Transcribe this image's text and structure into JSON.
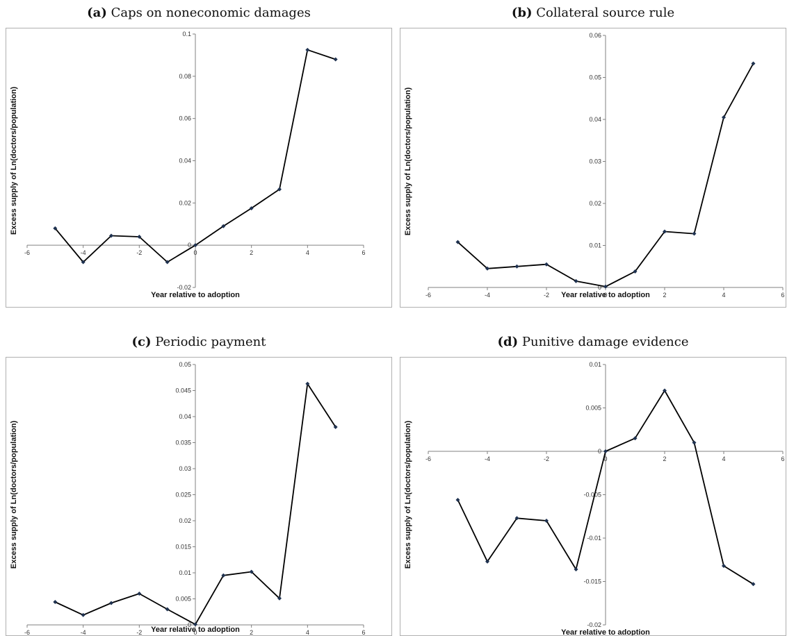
{
  "chart_data": [
    {
      "type": "line",
      "tag": "(a)",
      "title": "Caps on noneconomic damages",
      "xlabel": "Year relative to adoption",
      "ylabel": "Excess supply of Ln(doctors/population)",
      "xlim": [
        -6,
        6
      ],
      "xticks": [
        -6,
        -4,
        -2,
        0,
        2,
        4,
        6
      ],
      "ylim": [
        -0.02,
        0.1
      ],
      "yticks": [
        -0.02,
        0,
        0.02,
        0.04,
        0.06,
        0.08,
        0.1
      ],
      "ytick_labels": [
        "-0.02",
        "0",
        "0.02",
        "0.04",
        "0.06",
        "0.08",
        "0.1"
      ],
      "x": [
        -5,
        -4,
        -3,
        -2,
        -1,
        0,
        1,
        2,
        3,
        4,
        5
      ],
      "y": [
        0.008,
        -0.008,
        0.0045,
        0.004,
        -0.008,
        0,
        0.009,
        0.0175,
        0.0265,
        0.0925,
        0.088
      ],
      "grid": false
    },
    {
      "type": "line",
      "tag": "(b)",
      "title": "Collateral source rule",
      "xlabel": "Year relative to adoption",
      "ylabel": "Excess supply of Ln(doctors/population)",
      "xlim": [
        -6,
        6
      ],
      "xticks": [
        -6,
        -4,
        -2,
        0,
        2,
        4,
        6
      ],
      "ylim": [
        0,
        0.06
      ],
      "yticks": [
        0,
        0.01,
        0.02,
        0.03,
        0.04,
        0.05,
        0.06
      ],
      "ytick_labels": [
        "0",
        "0.01",
        "0.02",
        "0.03",
        "0.04",
        "0.05",
        "0.06"
      ],
      "x": [
        -5,
        -4,
        -3,
        -2,
        -1,
        0,
        1,
        2,
        3,
        4,
        5
      ],
      "y": [
        0.0108,
        0.0045,
        0.005,
        0.0055,
        0.0015,
        0.0002,
        0.0038,
        0.0133,
        0.0128,
        0.0405,
        0.0533
      ],
      "grid": false
    },
    {
      "type": "line",
      "tag": "(c)",
      "title": "Periodic payment",
      "xlabel": "Year relative to adoption",
      "ylabel": "Excess supply of Ln(doctors/population)",
      "xlim": [
        -6,
        6
      ],
      "xticks": [
        -6,
        -4,
        -2,
        0,
        2,
        4,
        6
      ],
      "ylim": [
        0,
        0.05
      ],
      "yticks": [
        0,
        0.005,
        0.01,
        0.015,
        0.02,
        0.025,
        0.03,
        0.035,
        0.04,
        0.045,
        0.05
      ],
      "ytick_labels": [
        "0",
        "0.005",
        "0.01",
        "0.015",
        "0.02",
        "0.025",
        "0.03",
        "0.035",
        "0.04",
        "0.045",
        "0.05"
      ],
      "x": [
        -5,
        -4,
        -3,
        -2,
        -1,
        0,
        1,
        2,
        3,
        4,
        5
      ],
      "y": [
        0.0044,
        0.0019,
        0.0042,
        0.006,
        0.003,
        0.0001,
        0.0095,
        0.0102,
        0.0051,
        0.0463,
        0.038
      ],
      "grid": false
    },
    {
      "type": "line",
      "tag": "(d)",
      "title": "Punitive damage evidence",
      "xlabel": "Year relative to adoption",
      "ylabel": "Excess supply of Ln(doctors/population)",
      "xlim": [
        -6,
        6
      ],
      "xticks": [
        -6,
        -4,
        -2,
        0,
        2,
        4,
        6
      ],
      "ylim": [
        -0.02,
        0.01
      ],
      "yticks": [
        -0.02,
        -0.015,
        -0.01,
        -0.005,
        0,
        0.005,
        0.01
      ],
      "ytick_labels": [
        "-0.02",
        "-0.015",
        "-0.01",
        "-0.005",
        "0",
        "0.005",
        "0.01"
      ],
      "x": [
        -5,
        -4,
        -3,
        -2,
        -1,
        0,
        1,
        2,
        3,
        4,
        5
      ],
      "y": [
        -0.0056,
        -0.0127,
        -0.0077,
        -0.008,
        -0.0136,
        0,
        0.0015,
        0.007,
        0.001,
        -0.0132,
        -0.0153
      ],
      "grid": false
    }
  ]
}
